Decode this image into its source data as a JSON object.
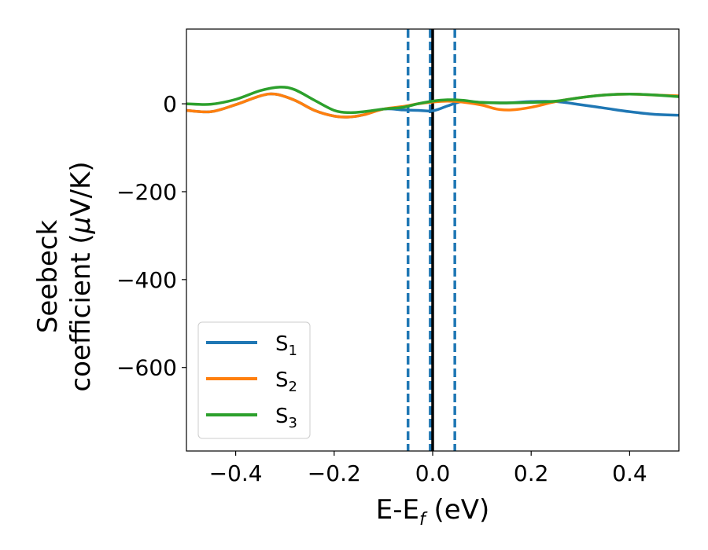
{
  "chart_data": {
    "type": "line",
    "xlabel": {
      "main": "E-E",
      "sub": "f",
      "unit": " (eV)"
    },
    "ylabel": {
      "line1": "Seebeck",
      "line2_prefix": "coefficient  (",
      "line2_mu": "μ",
      "line2_suffix": "V/K)"
    },
    "xlim": [
      -0.5,
      0.5
    ],
    "ylim": [
      -790,
      170
    ],
    "xticks": [
      -0.4,
      -0.2,
      0.0,
      0.2,
      0.4
    ],
    "xtick_labels": [
      "−0.4",
      "−0.2",
      "0.0",
      "0.2",
      "0.4"
    ],
    "yticks": [
      0,
      -200,
      -400,
      -600
    ],
    "ytick_labels": [
      "0",
      "−200",
      "−400",
      "−600"
    ],
    "grid": false,
    "legend_placement": "lower-left",
    "series": [
      {
        "name": "S",
        "subscript": "1",
        "color": "#1f77b4",
        "x": [
          -0.5,
          -0.45,
          -0.4,
          -0.35,
          -0.32,
          -0.28,
          -0.24,
          -0.2,
          -0.17,
          -0.14,
          -0.1,
          -0.06,
          -0.03,
          0.0,
          0.03,
          0.06,
          0.1,
          0.15,
          0.2,
          0.25,
          0.3,
          0.35,
          0.4,
          0.45,
          0.5
        ],
        "y": [
          -15,
          -18,
          -2,
          18,
          22,
          8,
          -15,
          -28,
          -30,
          -25,
          -12,
          -14,
          -15,
          -16,
          -5,
          5,
          3,
          2,
          5,
          5,
          -2,
          -10,
          -18,
          -24,
          -26
        ]
      },
      {
        "name": "S",
        "subscript": "2",
        "color": "#ff7f0e",
        "x": [
          -0.5,
          -0.45,
          -0.4,
          -0.35,
          -0.32,
          -0.28,
          -0.24,
          -0.2,
          -0.17,
          -0.14,
          -0.1,
          -0.06,
          -0.03,
          0.0,
          0.03,
          0.06,
          0.1,
          0.13,
          0.16,
          0.2,
          0.25,
          0.3,
          0.35,
          0.4,
          0.45,
          0.5
        ],
        "y": [
          -15,
          -18,
          -2,
          18,
          22,
          8,
          -15,
          -28,
          -30,
          -25,
          -12,
          -6,
          0,
          4,
          6,
          4,
          -3,
          -12,
          -14,
          -8,
          5,
          14,
          20,
          22,
          20,
          18
        ]
      },
      {
        "name": "S",
        "subscript": "3",
        "color": "#2ca02c",
        "x": [
          -0.5,
          -0.45,
          -0.4,
          -0.35,
          -0.31,
          -0.28,
          -0.24,
          -0.2,
          -0.17,
          -0.14,
          -0.1,
          -0.06,
          -0.03,
          0.0,
          0.03,
          0.06,
          0.1,
          0.15,
          0.2,
          0.25,
          0.3,
          0.35,
          0.4,
          0.45,
          0.5
        ],
        "y": [
          0,
          -1,
          10,
          30,
          38,
          32,
          8,
          -15,
          -20,
          -18,
          -12,
          -8,
          0,
          6,
          9,
          8,
          3,
          2,
          3,
          6,
          14,
          20,
          22,
          20,
          16
        ]
      }
    ],
    "vlines": [
      {
        "x": -0.05,
        "color": "#1f77b4",
        "style": "dashed"
      },
      {
        "x": -0.005,
        "color": "#1f77b4",
        "style": "dashed"
      },
      {
        "x": 0.045,
        "color": "#1f77b4",
        "style": "dashed"
      },
      {
        "x": 0.0,
        "color": "#000000",
        "style": "solid"
      }
    ]
  }
}
